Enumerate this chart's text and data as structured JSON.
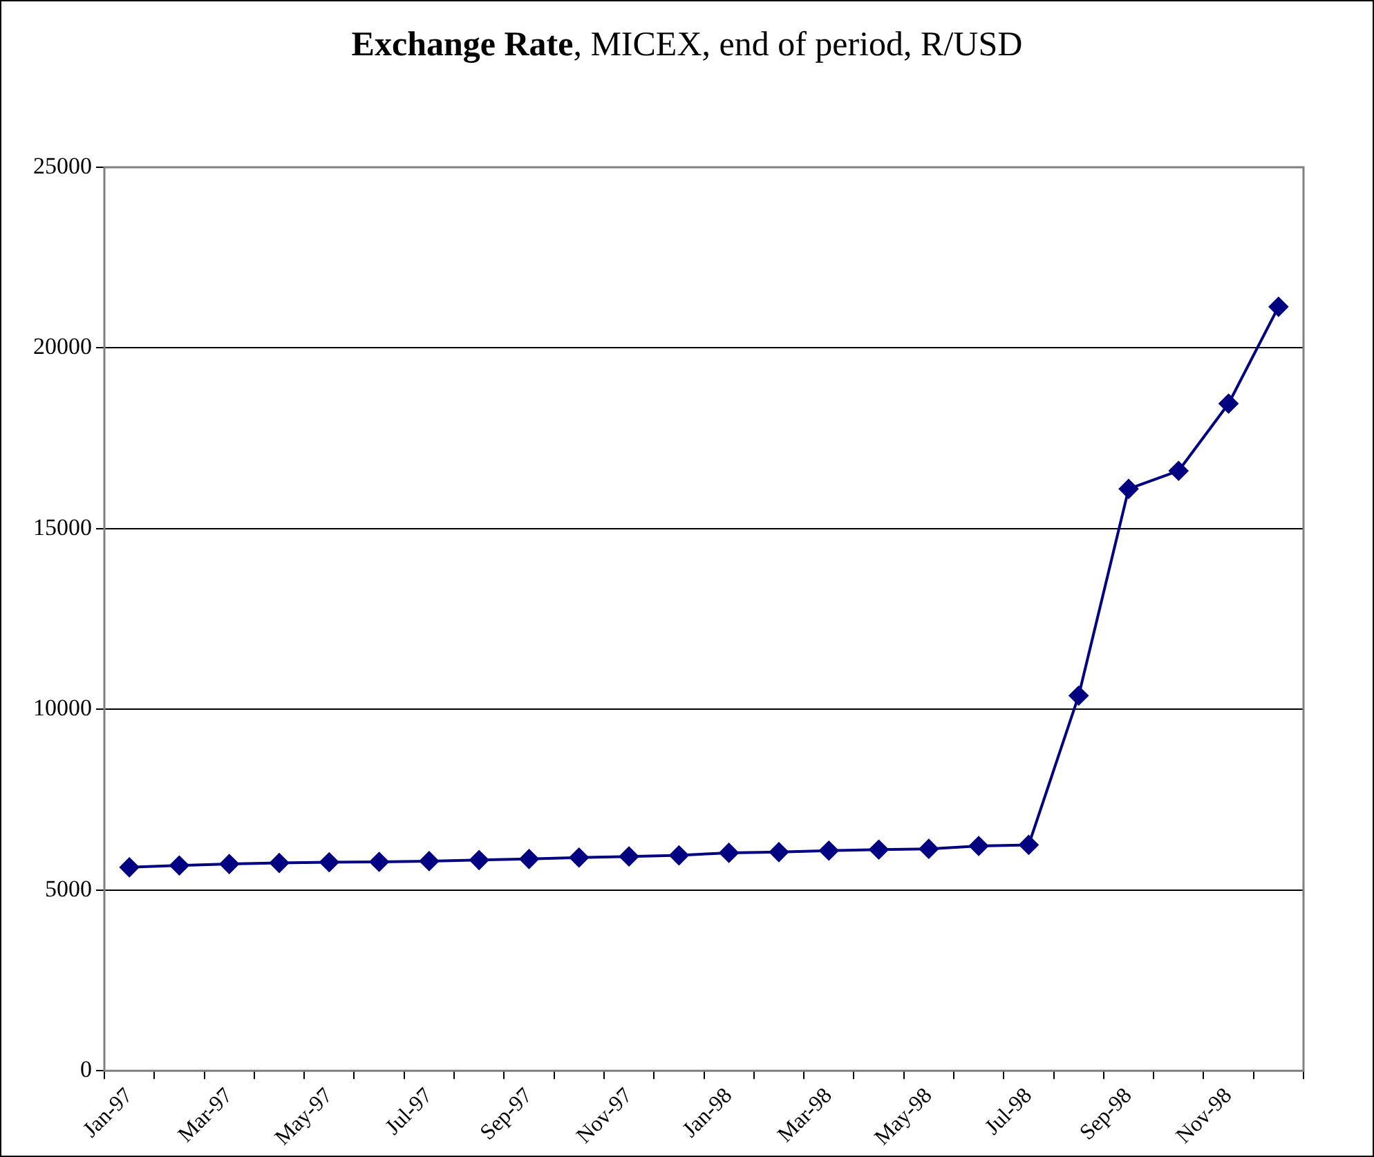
{
  "chart_data": {
    "type": "line",
    "title": "Exchange Rate, MICEX, end of period, R/USD",
    "categories": [
      "Jan-97",
      null,
      "Mar-97",
      null,
      "May-97",
      null,
      "Jul-97",
      null,
      "Sep-97",
      null,
      "Nov-97",
      null,
      "Jan-98",
      null,
      "Mar-98",
      null,
      "May-98",
      null,
      "Jul-98",
      null,
      "Sep-98",
      null,
      "Nov-98",
      null
    ],
    "series": [
      {
        "color": "#000080",
        "values": [
          5630,
          5680,
          5720,
          5750,
          5770,
          5780,
          5800,
          5830,
          5860,
          5900,
          5930,
          5960,
          6030,
          6050,
          6090,
          6120,
          6140,
          6220,
          6250,
          10380,
          16100,
          16600,
          18460,
          21140
        ]
      }
    ],
    "ylim": [
      0,
      25000
    ],
    "yticks": [
      0,
      5000,
      10000,
      15000,
      20000,
      25000
    ],
    "grid": "y",
    "legend": false,
    "marker": "diamond",
    "line_style": "solid"
  }
}
